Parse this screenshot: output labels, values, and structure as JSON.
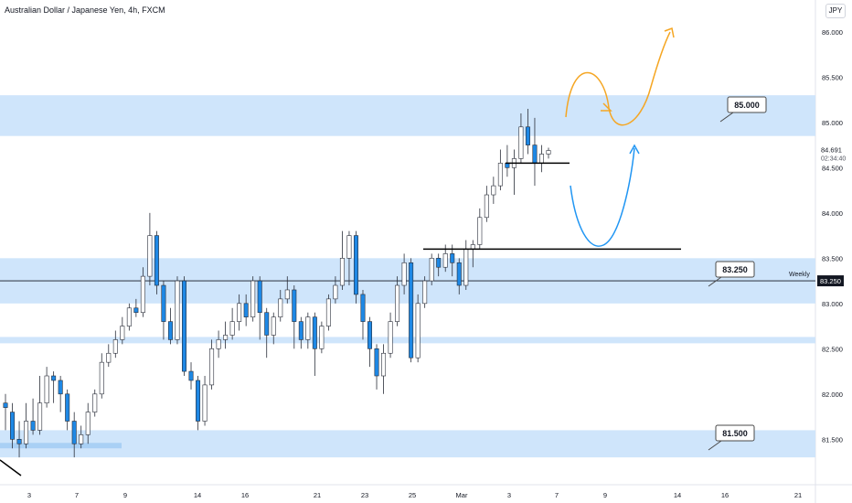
{
  "chart_data": {
    "type": "candlestick",
    "title": "Australian Dollar / Japanese Yen, 4h, FXCM",
    "currency": "JPY",
    "ylim": [
      81.2,
      86.15
    ],
    "y_ticks": [
      "86.000",
      "85.500",
      "85.000",
      "84.500",
      "84.000",
      "83.500",
      "83.000",
      "82.500",
      "82.000",
      "81.500"
    ],
    "x_ticks": [
      "3",
      "7",
      "9",
      "14",
      "16",
      "21",
      "23",
      "25",
      "Mar",
      "3",
      "7",
      "9",
      "14",
      "16",
      "21"
    ],
    "current_price": "84.691",
    "countdown": "02:34:40",
    "weekly_label": "Weekly",
    "weekly_price": "83.250",
    "zone_labels": [
      "85.000",
      "83.250",
      "81.500"
    ],
    "zones": [
      [
        84.85,
        85.3
      ],
      [
        83.0,
        83.5
      ],
      [
        82.56,
        82.63
      ],
      [
        81.3,
        81.6
      ]
    ],
    "small_zone": [
      81.4,
      81.46
    ],
    "levels": [
      84.55,
      83.6
    ],
    "candles": [
      [
        81.9,
        81.85,
        82.0,
        81.6
      ],
      [
        81.8,
        81.5,
        81.9,
        81.4
      ],
      [
        81.5,
        81.45,
        81.7,
        81.3
      ],
      [
        81.45,
        81.7,
        81.9,
        81.4
      ],
      [
        81.7,
        81.6,
        81.95,
        81.55
      ],
      [
        81.6,
        81.9,
        82.2,
        81.55
      ],
      [
        81.9,
        82.2,
        82.3,
        81.85
      ],
      [
        82.2,
        82.15,
        82.25,
        81.9
      ],
      [
        82.15,
        82.0,
        82.2,
        81.8
      ],
      [
        82.0,
        81.7,
        82.05,
        81.6
      ],
      [
        81.7,
        81.45,
        81.8,
        81.3
      ],
      [
        81.45,
        81.55,
        81.65,
        81.4
      ],
      [
        81.55,
        81.8,
        81.9,
        81.45
      ],
      [
        81.8,
        82.0,
        82.05,
        81.75
      ],
      [
        82.0,
        82.35,
        82.45,
        81.95
      ],
      [
        82.35,
        82.45,
        82.55,
        82.3
      ],
      [
        82.45,
        82.6,
        82.7,
        82.4
      ],
      [
        82.6,
        82.75,
        82.85,
        82.55
      ],
      [
        82.75,
        82.95,
        83.0,
        82.7
      ],
      [
        82.95,
        82.9,
        83.05,
        82.85
      ],
      [
        82.9,
        83.3,
        83.4,
        82.85
      ],
      [
        83.3,
        83.75,
        84.0,
        83.2
      ],
      [
        83.75,
        83.2,
        83.8,
        83.1
      ],
      [
        83.2,
        82.8,
        83.25,
        82.6
      ],
      [
        82.8,
        82.6,
        82.95,
        82.55
      ],
      [
        82.6,
        83.25,
        83.3,
        82.55
      ],
      [
        83.25,
        82.25,
        83.3,
        82.2
      ],
      [
        82.25,
        82.15,
        82.35,
        82.05
      ],
      [
        82.15,
        81.7,
        82.2,
        81.6
      ],
      [
        81.7,
        82.1,
        82.2,
        81.65
      ],
      [
        82.1,
        82.5,
        82.6,
        82.05
      ],
      [
        82.5,
        82.6,
        82.7,
        82.4
      ],
      [
        82.6,
        82.65,
        82.8,
        82.5
      ],
      [
        82.65,
        82.8,
        82.95,
        82.6
      ],
      [
        82.8,
        83.0,
        83.1,
        82.7
      ],
      [
        83.0,
        82.85,
        83.1,
        82.75
      ],
      [
        82.85,
        83.25,
        83.3,
        82.8
      ],
      [
        83.25,
        82.9,
        83.3,
        82.6
      ],
      [
        82.9,
        82.65,
        82.95,
        82.4
      ],
      [
        82.65,
        82.85,
        82.9,
        82.55
      ],
      [
        82.85,
        83.05,
        83.15,
        82.8
      ],
      [
        83.05,
        83.15,
        83.3,
        83.0
      ],
      [
        83.15,
        82.8,
        83.2,
        82.5
      ],
      [
        82.8,
        82.6,
        82.85,
        82.5
      ],
      [
        82.6,
        82.85,
        82.9,
        82.5
      ],
      [
        82.85,
        82.5,
        82.9,
        82.2
      ],
      [
        82.5,
        82.75,
        82.8,
        82.45
      ],
      [
        82.75,
        83.05,
        83.1,
        82.7
      ],
      [
        83.05,
        83.2,
        83.3,
        83.0
      ],
      [
        83.2,
        83.5,
        83.8,
        83.15
      ],
      [
        83.5,
        83.75,
        83.8,
        83.2
      ],
      [
        83.75,
        83.1,
        83.8,
        83.0
      ],
      [
        83.1,
        82.8,
        83.15,
        82.6
      ],
      [
        82.8,
        82.5,
        82.85,
        82.3
      ],
      [
        82.5,
        82.2,
        82.55,
        82.05
      ],
      [
        82.2,
        82.45,
        82.55,
        82.0
      ],
      [
        82.45,
        82.8,
        82.9,
        82.4
      ],
      [
        82.8,
        83.2,
        83.3,
        82.75
      ],
      [
        83.2,
        83.45,
        83.55,
        83.1
      ],
      [
        83.45,
        82.4,
        83.5,
        82.35
      ],
      [
        82.4,
        83.0,
        83.1,
        82.35
      ],
      [
        83.0,
        83.25,
        83.3,
        82.95
      ],
      [
        83.25,
        83.5,
        83.55,
        83.2
      ],
      [
        83.5,
        83.4,
        83.55,
        83.3
      ],
      [
        83.4,
        83.55,
        83.65,
        83.35
      ],
      [
        83.55,
        83.45,
        83.65,
        83.3
      ],
      [
        83.45,
        83.2,
        83.5,
        83.1
      ],
      [
        83.2,
        83.6,
        83.7,
        83.15
      ],
      [
        83.6,
        83.65,
        83.7,
        83.4
      ],
      [
        83.65,
        83.95,
        84.05,
        83.6
      ],
      [
        83.95,
        84.2,
        84.3,
        83.9
      ],
      [
        84.2,
        84.3,
        84.4,
        84.1
      ],
      [
        84.3,
        84.55,
        84.7,
        84.25
      ],
      [
        84.55,
        84.5,
        84.75,
        84.4
      ],
      [
        84.5,
        84.6,
        84.7,
        84.2
      ],
      [
        84.6,
        84.95,
        85.1,
        84.55
      ],
      [
        84.95,
        84.75,
        85.15,
        84.65
      ],
      [
        84.75,
        84.55,
        85.05,
        84.3
      ],
      [
        84.55,
        84.65,
        84.75,
        84.45
      ],
      [
        84.65,
        84.69,
        84.72,
        84.6
      ]
    ]
  }
}
